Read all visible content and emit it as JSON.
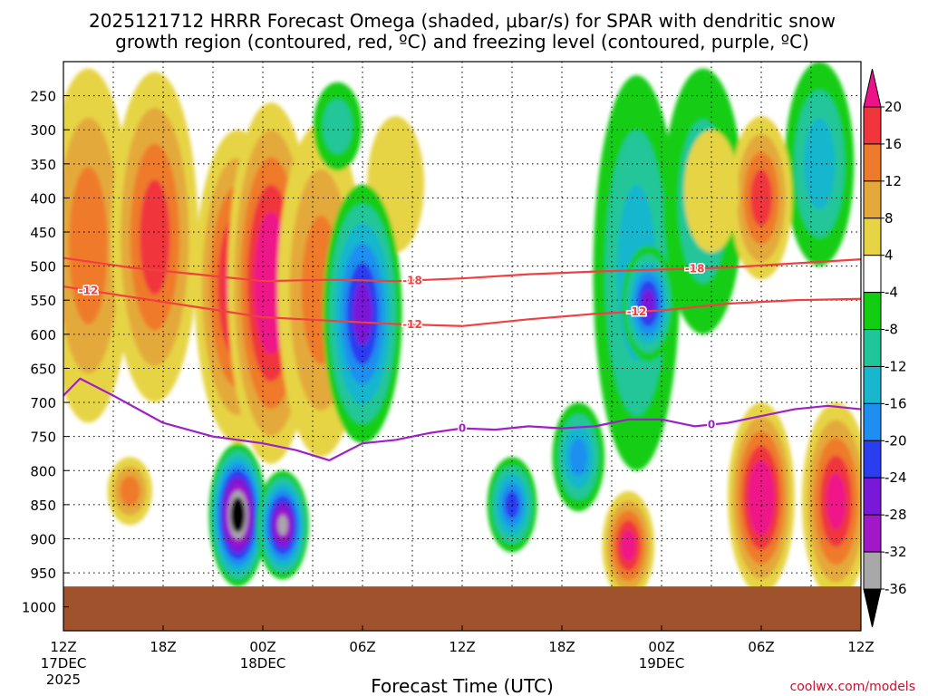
{
  "chart_data": {
    "type": "heatmap",
    "title_line1": "2025121712 HRRR Forecast Omega (shaded, μbar/s) for SPAR with dendritic snow",
    "title_line2": "growth region (contoured, red, ºC) and freezing level (contoured, purple, ºC)",
    "xlabel": "Forecast Time (UTC)",
    "credit": "coolwx.com/models",
    "y_axis": {
      "unit": "hPa",
      "ticks": [
        250,
        300,
        350,
        400,
        450,
        500,
        550,
        600,
        650,
        700,
        750,
        800,
        850,
        900,
        950,
        1000
      ],
      "ylim": [
        200,
        1035
      ]
    },
    "x_axis": {
      "unit": "forecast hour",
      "xlim": [
        0,
        48
      ],
      "ticks": [
        {
          "hour": 0,
          "label": "12Z",
          "sub1": "17DEC",
          "sub2": "2025"
        },
        {
          "hour": 6,
          "label": "18Z",
          "sub1": "",
          "sub2": ""
        },
        {
          "hour": 12,
          "label": "00Z",
          "sub1": "18DEC",
          "sub2": ""
        },
        {
          "hour": 18,
          "label": "06Z",
          "sub1": "",
          "sub2": ""
        },
        {
          "hour": 24,
          "label": "12Z",
          "sub1": "",
          "sub2": ""
        },
        {
          "hour": 30,
          "label": "18Z",
          "sub1": "",
          "sub2": ""
        },
        {
          "hour": 36,
          "label": "00Z",
          "sub1": "19DEC",
          "sub2": ""
        },
        {
          "hour": 42,
          "label": "06Z",
          "sub1": "",
          "sub2": ""
        },
        {
          "hour": 48,
          "label": "12Z",
          "sub1": "",
          "sub2": ""
        }
      ]
    },
    "colorbar": {
      "labels": [
        "20",
        "16",
        "12",
        "8",
        "4",
        "-4",
        "-8",
        "-12",
        "-16",
        "-20",
        "-24",
        "-28",
        "-32",
        "-36"
      ],
      "levels": [
        {
          "lo": 20,
          "hi": 24,
          "color": "#ee1289"
        },
        {
          "lo": 16,
          "hi": 20,
          "color": "#f0363c"
        },
        {
          "lo": 12,
          "hi": 16,
          "color": "#ee7a2b"
        },
        {
          "lo": 8,
          "hi": 12,
          "color": "#e4a93a"
        },
        {
          "lo": 4,
          "hi": 8,
          "color": "#e6d444"
        },
        {
          "lo": -4,
          "hi": 4,
          "color": "#ffffff"
        },
        {
          "lo": -8,
          "hi": -4,
          "color": "#12cd12"
        },
        {
          "lo": -12,
          "hi": -8,
          "color": "#20c699"
        },
        {
          "lo": -16,
          "hi": -12,
          "color": "#18b6cf"
        },
        {
          "lo": -20,
          "hi": -16,
          "color": "#1e8ff0"
        },
        {
          "lo": -24,
          "hi": -20,
          "color": "#2a3ef0"
        },
        {
          "lo": -28,
          "hi": -24,
          "color": "#7a18d8"
        },
        {
          "lo": -32,
          "hi": -28,
          "color": "#a018c8"
        },
        {
          "lo": -36,
          "hi": -32,
          "color": "#a8a8a8"
        },
        {
          "lo": -40,
          "hi": -36,
          "color": "#000000"
        }
      ]
    },
    "omega_features": [
      {
        "hour": 1.5,
        "p_top": 210,
        "p_bot": 730,
        "peak": 14
      },
      {
        "hour": 5.5,
        "p_top": 215,
        "p_bot": 700,
        "peak": 17
      },
      {
        "hour": 4.0,
        "p_top": 780,
        "p_bot": 880,
        "peak": 14
      },
      {
        "hour": 10.5,
        "p_top": 300,
        "p_bot": 760,
        "peak": 20
      },
      {
        "hour": 12.5,
        "p_top": 260,
        "p_bot": 790,
        "peak": 24
      },
      {
        "hour": 15.5,
        "p_top": 290,
        "p_bot": 780,
        "peak": 14
      },
      {
        "hour": 20.0,
        "p_top": 280,
        "p_bot": 480,
        "peak": 6
      },
      {
        "hour": 10.5,
        "p_top": 760,
        "p_bot": 970,
        "peak": -40
      },
      {
        "hour": 13.2,
        "p_top": 800,
        "p_bot": 960,
        "peak": -34
      },
      {
        "hour": 18.0,
        "p_top": 380,
        "p_bot": 760,
        "peak": -24
      },
      {
        "hour": 16.5,
        "p_top": 230,
        "p_bot": 360,
        "peak": -9
      },
      {
        "hour": 27.0,
        "p_top": 780,
        "p_bot": 920,
        "peak": -22
      },
      {
        "hour": 31.0,
        "p_top": 700,
        "p_bot": 860,
        "peak": -18
      },
      {
        "hour": 34.5,
        "p_top": 220,
        "p_bot": 800,
        "peak": -14
      },
      {
        "hour": 35.2,
        "p_top": 470,
        "p_bot": 640,
        "peak": -26
      },
      {
        "hour": 38.5,
        "p_top": 210,
        "p_bot": 600,
        "peak": -9
      },
      {
        "hour": 45.5,
        "p_top": 200,
        "p_bot": 500,
        "peak": -14
      },
      {
        "hour": 42.0,
        "p_top": 280,
        "p_bot": 520,
        "peak": 16
      },
      {
        "hour": 39.0,
        "p_top": 300,
        "p_bot": 480,
        "peak": 6
      },
      {
        "hour": 34.0,
        "p_top": 830,
        "p_bot": 990,
        "peak": 22
      },
      {
        "hour": 42.0,
        "p_top": 700,
        "p_bot": 980,
        "peak": 24
      },
      {
        "hour": 46.5,
        "p_top": 700,
        "p_bot": 990,
        "peak": 22
      }
    ],
    "ground": {
      "color": "#a0522d",
      "p_top": 970
    },
    "contours": [
      {
        "name": "dgz-minus18",
        "label": "-18",
        "color": "#f04040",
        "hours": [
          0,
          4,
          8,
          12,
          16,
          20,
          24,
          28,
          32,
          36,
          40,
          44,
          48
        ],
        "pressures": [
          488,
          502,
          512,
          522,
          520,
          522,
          518,
          512,
          508,
          505,
          502,
          496,
          490
        ],
        "label_hours": [
          21,
          38
        ]
      },
      {
        "name": "dgz-minus12",
        "label": "-12",
        "color": "#f04040",
        "hours": [
          0,
          4,
          8,
          12,
          16,
          20,
          24,
          28,
          32,
          36,
          40,
          44,
          48
        ],
        "pressures": [
          530,
          545,
          560,
          575,
          580,
          585,
          588,
          578,
          570,
          565,
          555,
          550,
          548
        ],
        "label_hours": [
          1.5,
          21,
          34.5
        ]
      },
      {
        "name": "freezing-level",
        "label": "0",
        "color": "#a020c8",
        "hours": [
          0,
          1,
          3,
          6,
          9,
          12,
          14,
          16,
          18,
          20,
          22,
          24,
          26,
          28,
          30,
          32,
          34,
          36,
          38,
          40,
          42,
          44,
          46,
          48
        ],
        "pressures": [
          690,
          665,
          690,
          730,
          750,
          760,
          770,
          785,
          760,
          755,
          745,
          738,
          740,
          735,
          738,
          735,
          725,
          725,
          735,
          730,
          720,
          710,
          705,
          710
        ],
        "label_hours": [
          24,
          39
        ]
      }
    ]
  }
}
